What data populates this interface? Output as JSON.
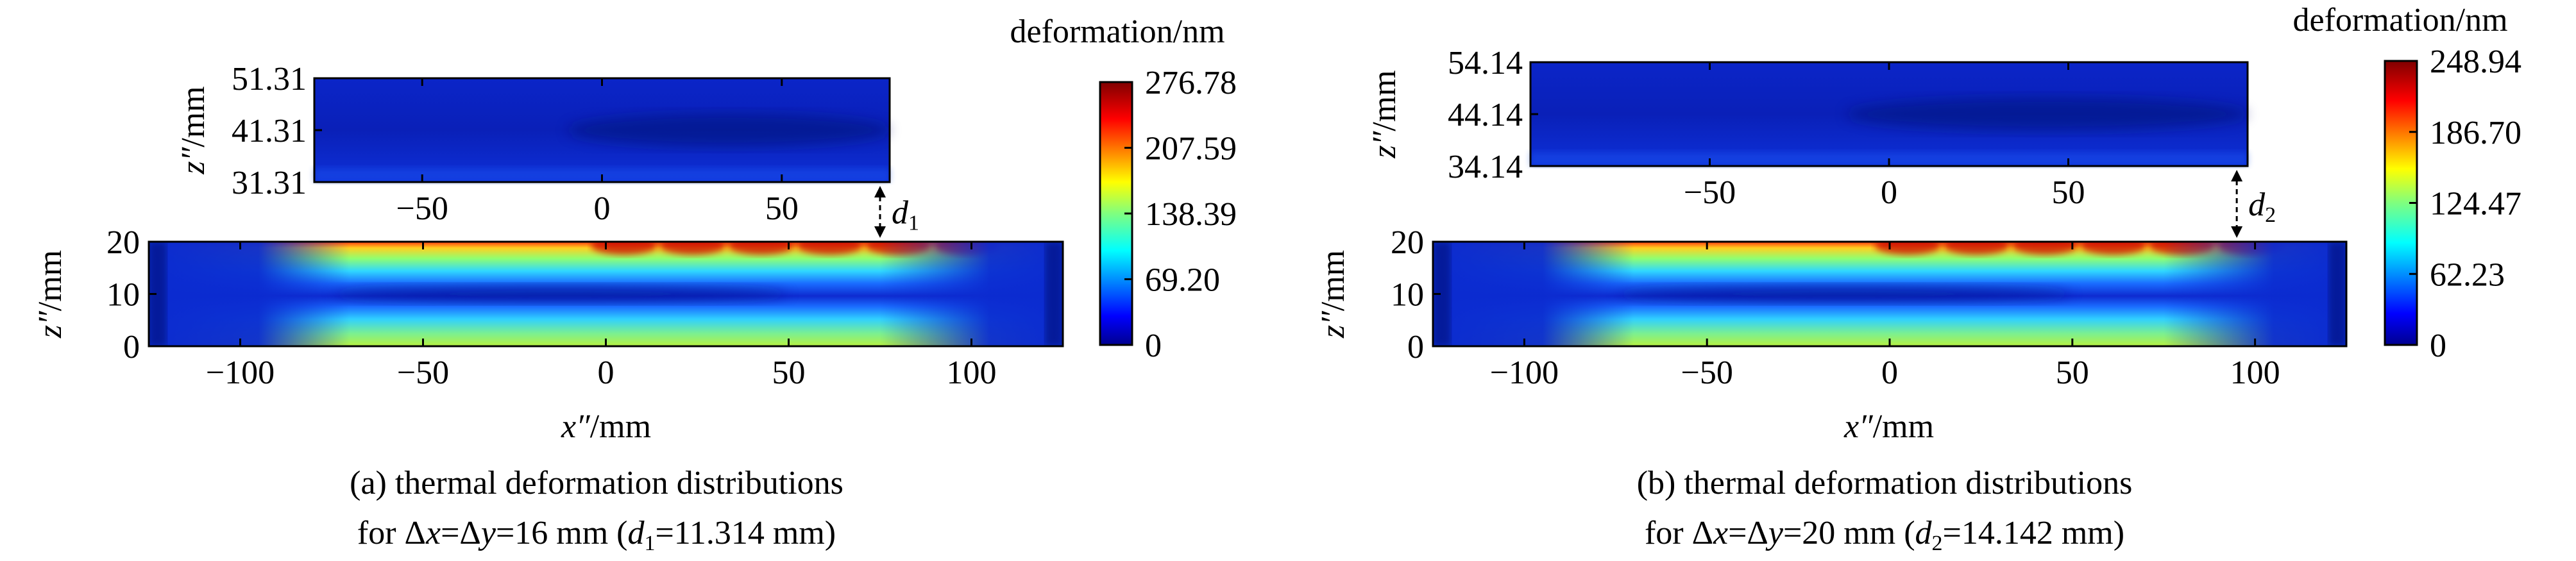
{
  "chart_data": [
    {
      "type": "heatmap",
      "panel_id": "a",
      "caption": {
        "line1": "(a) thermal deformation distributions",
        "line2_pre": "for Δ",
        "line2_x": "x",
        "line2_eq1": "=Δ",
        "line2_y": "y",
        "line2_eq2": "=16 mm (",
        "line2_d": "d",
        "line2_dsub": "1",
        "line2_post": "=11.314 mm)"
      },
      "xlabel_main": "x″",
      "xlabel_unit": "/mm",
      "zlabel_main": "z″",
      "zlabel_unit": "/mm",
      "gap_label_main": "d",
      "gap_label_sub": "1",
      "colorbar": {
        "title": "deformation/nm",
        "range": [
          0,
          276.78
        ],
        "tick_labels": [
          "276.78",
          "207.59",
          "138.39",
          "69.20",
          "0"
        ]
      },
      "top_plate": {
        "x_range": [
          -80,
          80
        ],
        "z_range": [
          31.31,
          51.31
        ],
        "x_tick_labels": [
          "−50",
          "0",
          "50"
        ],
        "z_tick_labels": [
          "51.31",
          "41.31",
          "31.31"
        ]
      },
      "bottom_plate": {
        "x_range": [
          -125,
          125
        ],
        "z_range": [
          0,
          20
        ],
        "x_tick_labels": [
          "−100",
          "−50",
          "0",
          "50",
          "100"
        ],
        "z_tick_labels": [
          "20",
          "10",
          "0"
        ]
      },
      "gap_arrow_x": 75
    },
    {
      "type": "heatmap",
      "panel_id": "b",
      "caption": {
        "line1": "(b) thermal deformation distributions",
        "line2_pre": "for Δ",
        "line2_x": "x",
        "line2_eq1": "=Δ",
        "line2_y": "y",
        "line2_eq2": "=20 mm (",
        "line2_d": "d",
        "line2_dsub": "2",
        "line2_post": "=14.142 mm)"
      },
      "xlabel_main": "x″",
      "xlabel_unit": "/mm",
      "zlabel_main": "z″",
      "zlabel_unit": "/mm",
      "gap_label_main": "d",
      "gap_label_sub": "2",
      "colorbar": {
        "title": "deformation/nm",
        "range": [
          0,
          248.94
        ],
        "tick_labels": [
          "248.94",
          "186.70",
          "124.47",
          "62.23",
          "0"
        ]
      },
      "top_plate": {
        "x_range": [
          -100,
          100
        ],
        "z_range": [
          34.14,
          54.14
        ],
        "x_tick_labels": [
          "−50",
          "0",
          "50"
        ],
        "z_tick_labels": [
          "54.14",
          "44.14",
          "34.14"
        ]
      },
      "bottom_plate": {
        "x_range": [
          -125,
          125
        ],
        "z_range": [
          0,
          20
        ],
        "x_tick_labels": [
          "−100",
          "−50",
          "0",
          "50",
          "100"
        ],
        "z_tick_labels": [
          "20",
          "10",
          "0"
        ]
      },
      "gap_arrow_x": 95
    }
  ]
}
